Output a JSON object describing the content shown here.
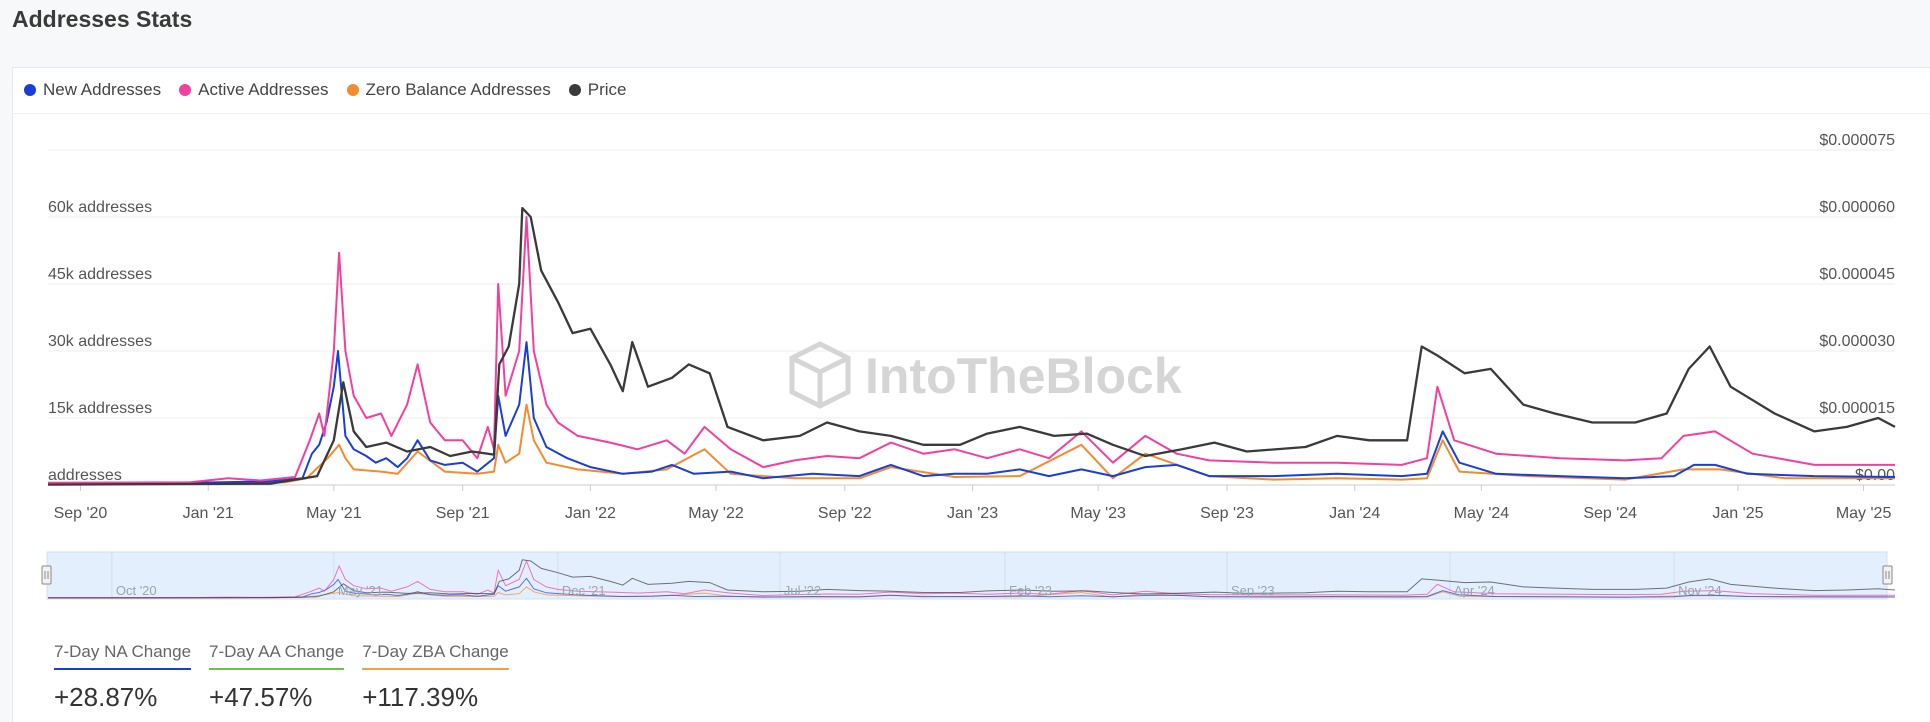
{
  "page": {
    "title": "Addresses Stats"
  },
  "watermark": "IntoTheBlock",
  "colors": {
    "new": "#1a3fd6",
    "active": "#f2409e",
    "zero": "#f58a2f",
    "price": "#3a3a3a"
  },
  "legend": [
    {
      "label": "New Addresses",
      "color": "#1a3fd6"
    },
    {
      "label": "Active Addresses",
      "color": "#f2409e"
    },
    {
      "label": "Zero Balance Addresses",
      "color": "#f58a2f"
    },
    {
      "label": "Price",
      "color": "#3a3a3a"
    }
  ],
  "stats": [
    {
      "label": "7-Day NA Change",
      "value": "+28.87%",
      "color": "#1a3fd6"
    },
    {
      "label": "7-Day AA Change",
      "value": "+47.57%",
      "color": "#6cc24a"
    },
    {
      "label": "7-Day ZBA Change",
      "value": "+117.39%",
      "color": "#f5a040"
    }
  ],
  "chart_data": {
    "type": "line",
    "x_range": [
      "2020-08-01",
      "2025-05-31"
    ],
    "x_ticks": [
      "Sep '20",
      "Jan '21",
      "May '21",
      "Sep '21",
      "Jan '22",
      "May '22",
      "Sep '22",
      "Jan '23",
      "May '23",
      "Sep '23",
      "Jan '24",
      "May '24",
      "Sep '24",
      "Jan '25",
      "May '25"
    ],
    "x_tick_dates": [
      "2020-09-01",
      "2021-01-01",
      "2021-05-01",
      "2021-09-01",
      "2022-01-01",
      "2022-05-01",
      "2022-09-01",
      "2023-01-01",
      "2023-05-01",
      "2023-09-01",
      "2024-01-01",
      "2024-05-01",
      "2024-09-01",
      "2025-01-01",
      "2025-05-01"
    ],
    "y_left": {
      "range": [
        0,
        75000
      ],
      "ticks": [
        0,
        15000,
        30000,
        45000,
        60000
      ],
      "tick_labels": [
        "addresses",
        "15k addresses",
        "30k addresses",
        "45k addresses",
        "60k addresses"
      ]
    },
    "y_right": {
      "range": [
        0,
        7.5e-05
      ],
      "ticks": [
        0,
        1.5e-05,
        3e-05,
        4.5e-05,
        6e-05,
        7.5e-05
      ],
      "tick_labels": [
        "$0.00",
        "$0.000015",
        "$0.000030",
        "$0.000045",
        "$0.000060",
        "$0.000075"
      ]
    },
    "grid": true,
    "legend_position": "top-left",
    "navigator_labels": [
      "Oct '20",
      "May '21",
      "Dec '21",
      "Jul '22",
      "Feb '23",
      "Sep '23",
      "Apr '24",
      "Nov '24"
    ],
    "navigator_dates": [
      "2020-10-01",
      "2021-05-01",
      "2021-12-01",
      "2022-07-01",
      "2023-02-01",
      "2023-09-01",
      "2024-04-01",
      "2024-11-01"
    ],
    "series": [
      {
        "name": "New Addresses",
        "axis": "left",
        "points": [
          [
            "2020-08-01",
            400
          ],
          [
            "2020-11-01",
            400
          ],
          [
            "2021-01-15",
            600
          ],
          [
            "2021-03-01",
            800
          ],
          [
            "2021-04-01",
            1500
          ],
          [
            "2021-04-10",
            7000
          ],
          [
            "2021-04-17",
            9000
          ],
          [
            "2021-04-24",
            14000
          ],
          [
            "2021-05-01",
            22000
          ],
          [
            "2021-05-05",
            30000
          ],
          [
            "2021-05-12",
            11000
          ],
          [
            "2021-05-20",
            8000
          ],
          [
            "2021-06-01",
            6500
          ],
          [
            "2021-06-10",
            5000
          ],
          [
            "2021-06-20",
            6000
          ],
          [
            "2021-07-01",
            4000
          ],
          [
            "2021-07-10",
            6000
          ],
          [
            "2021-07-20",
            10000
          ],
          [
            "2021-08-01",
            5500
          ],
          [
            "2021-08-15",
            4500
          ],
          [
            "2021-09-01",
            5000
          ],
          [
            "2021-09-15",
            3000
          ],
          [
            "2021-10-01",
            6000
          ],
          [
            "2021-10-05",
            20000
          ],
          [
            "2021-10-12",
            11000
          ],
          [
            "2021-10-25",
            18000
          ],
          [
            "2021-11-01",
            32000
          ],
          [
            "2021-11-08",
            15000
          ],
          [
            "2021-11-20",
            8500
          ],
          [
            "2021-12-10",
            6000
          ],
          [
            "2022-01-01",
            4000
          ],
          [
            "2022-02-01",
            2500
          ],
          [
            "2022-03-01",
            3000
          ],
          [
            "2022-03-20",
            4500
          ],
          [
            "2022-04-10",
            2500
          ],
          [
            "2022-05-15",
            3000
          ],
          [
            "2022-06-15",
            1500
          ],
          [
            "2022-08-01",
            2500
          ],
          [
            "2022-09-15",
            2000
          ],
          [
            "2022-10-15",
            4500
          ],
          [
            "2022-11-15",
            2000
          ],
          [
            "2022-12-15",
            2500
          ],
          [
            "2023-01-15",
            2500
          ],
          [
            "2023-02-15",
            3500
          ],
          [
            "2023-03-15",
            2000
          ],
          [
            "2023-04-15",
            3500
          ],
          [
            "2023-05-15",
            2000
          ],
          [
            "2023-06-15",
            4000
          ],
          [
            "2023-07-15",
            4500
          ],
          [
            "2023-08-15",
            2000
          ],
          [
            "2023-10-15",
            2000
          ],
          [
            "2023-12-15",
            2500
          ],
          [
            "2024-02-15",
            2000
          ],
          [
            "2024-03-10",
            2500
          ],
          [
            "2024-03-25",
            12000
          ],
          [
            "2024-04-10",
            5000
          ],
          [
            "2024-05-15",
            2500
          ],
          [
            "2024-07-15",
            2000
          ],
          [
            "2024-09-15",
            1500
          ],
          [
            "2024-11-01",
            2000
          ],
          [
            "2024-11-20",
            4500
          ],
          [
            "2024-12-10",
            4500
          ],
          [
            "2025-01-10",
            2500
          ],
          [
            "2025-03-15",
            2000
          ],
          [
            "2025-05-31",
            1800
          ]
        ]
      },
      {
        "name": "Active Addresses",
        "axis": "left",
        "points": [
          [
            "2020-08-01",
            500
          ],
          [
            "2020-12-15",
            600
          ],
          [
            "2021-01-20",
            1500
          ],
          [
            "2021-02-20",
            1000
          ],
          [
            "2021-03-25",
            1800
          ],
          [
            "2021-04-08",
            10000
          ],
          [
            "2021-04-17",
            16000
          ],
          [
            "2021-04-22",
            11000
          ],
          [
            "2021-05-01",
            30000
          ],
          [
            "2021-05-06",
            52000
          ],
          [
            "2021-05-12",
            30000
          ],
          [
            "2021-05-20",
            20000
          ],
          [
            "2021-06-01",
            15000
          ],
          [
            "2021-06-15",
            16000
          ],
          [
            "2021-06-25",
            11000
          ],
          [
            "2021-07-10",
            18000
          ],
          [
            "2021-07-20",
            27000
          ],
          [
            "2021-08-01",
            14000
          ],
          [
            "2021-08-15",
            10000
          ],
          [
            "2021-09-01",
            10000
          ],
          [
            "2021-09-15",
            6000
          ],
          [
            "2021-09-25",
            13000
          ],
          [
            "2021-10-01",
            8000
          ],
          [
            "2021-10-05",
            45000
          ],
          [
            "2021-10-12",
            20000
          ],
          [
            "2021-10-25",
            30000
          ],
          [
            "2021-11-01",
            60000
          ],
          [
            "2021-11-08",
            30000
          ],
          [
            "2021-11-20",
            18000
          ],
          [
            "2021-12-01",
            14000
          ],
          [
            "2021-12-20",
            11000
          ],
          [
            "2022-01-20",
            9500
          ],
          [
            "2022-02-15",
            8000
          ],
          [
            "2022-03-15",
            10000
          ],
          [
            "2022-04-01",
            7000
          ],
          [
            "2022-04-20",
            13000
          ],
          [
            "2022-05-15",
            8000
          ],
          [
            "2022-06-15",
            4000
          ],
          [
            "2022-07-15",
            5500
          ],
          [
            "2022-08-15",
            6500
          ],
          [
            "2022-09-15",
            6000
          ],
          [
            "2022-10-15",
            9500
          ],
          [
            "2022-11-15",
            7000
          ],
          [
            "2022-12-15",
            8000
          ],
          [
            "2023-01-15",
            6000
          ],
          [
            "2023-02-15",
            8000
          ],
          [
            "2023-03-15",
            6000
          ],
          [
            "2023-04-15",
            12000
          ],
          [
            "2023-05-15",
            5000
          ],
          [
            "2023-06-15",
            11000
          ],
          [
            "2023-07-15",
            7000
          ],
          [
            "2023-08-15",
            5500
          ],
          [
            "2023-10-15",
            5000
          ],
          [
            "2023-12-15",
            5000
          ],
          [
            "2024-02-15",
            4500
          ],
          [
            "2024-03-10",
            6000
          ],
          [
            "2024-03-20",
            22000
          ],
          [
            "2024-04-05",
            10000
          ],
          [
            "2024-05-15",
            7000
          ],
          [
            "2024-07-15",
            6000
          ],
          [
            "2024-09-15",
            5500
          ],
          [
            "2024-10-20",
            6000
          ],
          [
            "2024-11-10",
            11000
          ],
          [
            "2024-12-10",
            12000
          ],
          [
            "2025-01-15",
            7000
          ],
          [
            "2025-03-15",
            4500
          ],
          [
            "2025-05-31",
            4500
          ]
        ]
      },
      {
        "name": "Zero Balance Addresses",
        "axis": "left",
        "points": [
          [
            "2020-08-01",
            200
          ],
          [
            "2021-01-01",
            300
          ],
          [
            "2021-03-15",
            600
          ],
          [
            "2021-04-05",
            1500
          ],
          [
            "2021-04-25",
            6000
          ],
          [
            "2021-05-06",
            9000
          ],
          [
            "2021-05-12",
            6000
          ],
          [
            "2021-05-20",
            3500
          ],
          [
            "2021-06-15",
            3000
          ],
          [
            "2021-07-01",
            2500
          ],
          [
            "2021-07-20",
            7500
          ],
          [
            "2021-08-15",
            3000
          ],
          [
            "2021-09-15",
            2500
          ],
          [
            "2021-10-01",
            3000
          ],
          [
            "2021-10-05",
            9000
          ],
          [
            "2021-10-12",
            5000
          ],
          [
            "2021-10-25",
            7000
          ],
          [
            "2021-11-01",
            18000
          ],
          [
            "2021-11-08",
            10000
          ],
          [
            "2021-11-20",
            5000
          ],
          [
            "2021-12-20",
            3500
          ],
          [
            "2022-02-01",
            2500
          ],
          [
            "2022-03-15",
            3500
          ],
          [
            "2022-04-20",
            8000
          ],
          [
            "2022-05-15",
            2500
          ],
          [
            "2022-07-15",
            1500
          ],
          [
            "2022-09-15",
            1500
          ],
          [
            "2022-10-15",
            4000
          ],
          [
            "2022-12-15",
            1800
          ],
          [
            "2023-02-15",
            2000
          ],
          [
            "2023-04-15",
            9000
          ],
          [
            "2023-05-15",
            1500
          ],
          [
            "2023-06-15",
            7000
          ],
          [
            "2023-08-15",
            2000
          ],
          [
            "2023-10-15",
            1200
          ],
          [
            "2023-12-15",
            1500
          ],
          [
            "2024-02-15",
            1200
          ],
          [
            "2024-03-10",
            1500
          ],
          [
            "2024-03-25",
            10000
          ],
          [
            "2024-04-10",
            3000
          ],
          [
            "2024-06-15",
            2000
          ],
          [
            "2024-09-15",
            1200
          ],
          [
            "2024-11-10",
            3500
          ],
          [
            "2024-12-15",
            3500
          ],
          [
            "2025-02-15",
            1500
          ],
          [
            "2025-05-31",
            1500
          ]
        ]
      },
      {
        "name": "Price",
        "axis": "right",
        "points": [
          [
            "2020-08-01",
            1e-07
          ],
          [
            "2021-03-01",
            3e-07
          ],
          [
            "2021-04-15",
            2e-06
          ],
          [
            "2021-05-01",
            1e-05
          ],
          [
            "2021-05-10",
            2.3e-05
          ],
          [
            "2021-05-20",
            1.2e-05
          ],
          [
            "2021-06-01",
            8.5e-06
          ],
          [
            "2021-06-20",
            9.5e-06
          ],
          [
            "2021-07-10",
            7.5e-06
          ],
          [
            "2021-08-01",
            8.5e-06
          ],
          [
            "2021-08-20",
            6.5e-06
          ],
          [
            "2021-09-10",
            7.5e-06
          ],
          [
            "2021-10-01",
            6.8e-06
          ],
          [
            "2021-10-06",
            2.7e-05
          ],
          [
            "2021-10-15",
            3.1e-05
          ],
          [
            "2021-10-25",
            4.5e-05
          ],
          [
            "2021-10-28",
            6.2e-05
          ],
          [
            "2021-11-05",
            6e-05
          ],
          [
            "2021-11-15",
            4.8e-05
          ],
          [
            "2021-12-01",
            4.1e-05
          ],
          [
            "2021-12-15",
            3.4e-05
          ],
          [
            "2022-01-01",
            3.5e-05
          ],
          [
            "2022-01-20",
            2.7e-05
          ],
          [
            "2022-02-01",
            2.1e-05
          ],
          [
            "2022-02-10",
            3.2e-05
          ],
          [
            "2022-02-25",
            2.2e-05
          ],
          [
            "2022-03-20",
            2.4e-05
          ],
          [
            "2022-04-05",
            2.7e-05
          ],
          [
            "2022-04-25",
            2.5e-05
          ],
          [
            "2022-05-12",
            1.3e-05
          ],
          [
            "2022-06-15",
            1e-05
          ],
          [
            "2022-07-20",
            1.1e-05
          ],
          [
            "2022-08-15",
            1.4e-05
          ],
          [
            "2022-09-15",
            1.2e-05
          ],
          [
            "2022-10-15",
            1.1e-05
          ],
          [
            "2022-11-15",
            9e-06
          ],
          [
            "2022-12-20",
            9e-06
          ],
          [
            "2023-01-15",
            1.15e-05
          ],
          [
            "2023-02-15",
            1.3e-05
          ],
          [
            "2023-03-20",
            1.1e-05
          ],
          [
            "2023-04-20",
            1.15e-05
          ],
          [
            "2023-05-15",
            9e-06
          ],
          [
            "2023-06-15",
            6.5e-06
          ],
          [
            "2023-07-20",
            8e-06
          ],
          [
            "2023-08-20",
            9.5e-06
          ],
          [
            "2023-09-20",
            7.5e-06
          ],
          [
            "2023-11-15",
            8.5e-06
          ],
          [
            "2023-12-15",
            1.1e-05
          ],
          [
            "2024-01-15",
            1e-05
          ],
          [
            "2024-02-20",
            1e-05
          ],
          [
            "2024-03-05",
            3.1e-05
          ],
          [
            "2024-03-20",
            2.9e-05
          ],
          [
            "2024-04-15",
            2.5e-05
          ],
          [
            "2024-05-10",
            2.6e-05
          ],
          [
            "2024-06-10",
            1.8e-05
          ],
          [
            "2024-07-10",
            1.6e-05
          ],
          [
            "2024-08-15",
            1.4e-05
          ],
          [
            "2024-09-25",
            1.4e-05
          ],
          [
            "2024-10-25",
            1.6e-05
          ],
          [
            "2024-11-15",
            2.6e-05
          ],
          [
            "2024-12-05",
            3.1e-05
          ],
          [
            "2024-12-25",
            2.2e-05
          ],
          [
            "2025-02-05",
            1.6e-05
          ],
          [
            "2025-03-15",
            1.2e-05
          ],
          [
            "2025-04-15",
            1.3e-05
          ],
          [
            "2025-05-15",
            1.5e-05
          ],
          [
            "2025-05-31",
            1.3e-05
          ]
        ]
      }
    ]
  }
}
